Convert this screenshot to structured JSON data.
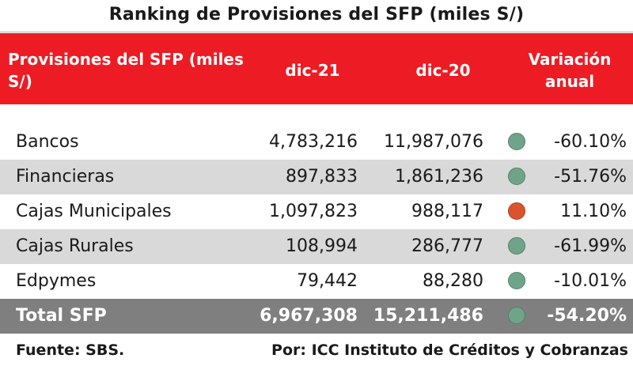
{
  "title": "Ranking de Provisiones del SFP (miles S/)",
  "header": {
    "label": "Provisiones del SFP (miles S/)",
    "col1": "dic-21",
    "col2": "dic-20",
    "col3": "Variación anual"
  },
  "colors": {
    "header_bg": "#ed1c24",
    "row_shade": "#d9d9d9",
    "total_bg": "#7f7f7f",
    "indicator_negative": "#6fa48a",
    "indicator_positive": "#d9542e"
  },
  "chart_data": {
    "type": "table",
    "title": "Ranking de Provisiones del SFP (miles S/)",
    "columns": [
      "Provisiones del SFP (miles S/)",
      "dic-21",
      "dic-20",
      "Variación anual"
    ],
    "rows": [
      {
        "label": "Bancos",
        "dic21": "4,783,216",
        "dic20": "11,987,076",
        "indicator": "negative",
        "variation": "-60.10%"
      },
      {
        "label": "Financieras",
        "dic21": "897,833",
        "dic20": "1,861,236",
        "indicator": "negative",
        "variation": "-51.76%"
      },
      {
        "label": "Cajas Municipales",
        "dic21": "1,097,823",
        "dic20": "988,117",
        "indicator": "positive",
        "variation": "11.10%"
      },
      {
        "label": "Cajas Rurales",
        "dic21": "108,994",
        "dic20": "286,777",
        "indicator": "negative",
        "variation": "-61.99%"
      },
      {
        "label": "Edpymes",
        "dic21": "79,442",
        "dic20": "88,280",
        "indicator": "negative",
        "variation": "-10.01%"
      }
    ],
    "total": {
      "label": "Total SFP",
      "dic21": "6,967,308",
      "dic20": "15,211,486",
      "indicator": "negative",
      "variation": "-54.20%"
    }
  },
  "footer": {
    "source": "Fuente: SBS.",
    "author": "Por: ICC Instituto de Créditos y Cobranzas"
  }
}
